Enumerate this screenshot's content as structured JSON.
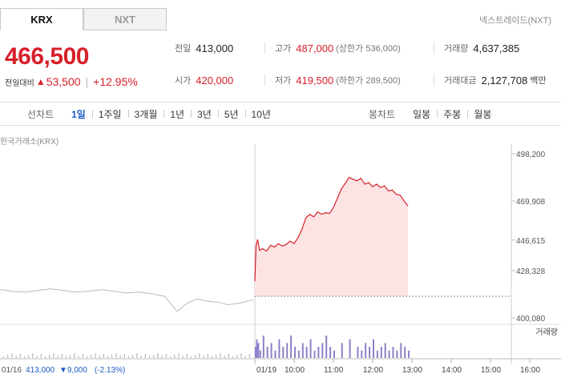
{
  "tabs": [
    {
      "label": "KRX",
      "active": true
    },
    {
      "label": "NXT",
      "active": false
    }
  ],
  "nxt_link": "넥스트레이드(NXT)",
  "price": {
    "current": "466,500",
    "change_label": "전일대비",
    "change": "53,500",
    "change_rate": "+12.95%"
  },
  "stats": {
    "prev_close": {
      "label": "전일",
      "value": "413,000"
    },
    "high": {
      "label": "고가",
      "value": "487,000",
      "sub": "(상한가 536,000)"
    },
    "volume": {
      "label": "거래량",
      "value": "4,637,385"
    },
    "open": {
      "label": "시가",
      "value": "420,000"
    },
    "low": {
      "label": "저가",
      "value": "419,500",
      "sub": "(하한가 289,500)"
    },
    "trade_value": {
      "label": "거래대금",
      "value": "2,127,708",
      "unit": "백만"
    }
  },
  "toolbar": {
    "line_chart_label": "선차트",
    "periods": [
      "1일",
      "1주일",
      "3개월",
      "1년",
      "3년",
      "5년",
      "10년"
    ],
    "active_period": "1일",
    "candle_chart_label": "봉차트",
    "candle_periods": [
      "일봉",
      "주봉",
      "월봉"
    ]
  },
  "chart_source": "한국거래소(KRX)",
  "colors": {
    "up": "#d6202a",
    "down": "#1d5cc4",
    "area_fill": "#fde3e3"
  },
  "chart_data": {
    "type": "line",
    "y_ticks": [
      "498,200",
      "469,908",
      "446,615",
      "428,328",
      "400,080"
    ],
    "y_tick_values": [
      498200,
      469908,
      446615,
      428328,
      400080
    ],
    "ylim": [
      400080,
      498200
    ],
    "x_ticks": [
      "01/19",
      "10:00",
      "11:00",
      "12:00",
      "13:00",
      "14:00",
      "15:00",
      "16:00"
    ],
    "volume_label": "거래량",
    "prev_day_info": {
      "date": "01/16",
      "close": "413,000",
      "change": "9,000",
      "rate": "(-2.13%)"
    },
    "prev_close_value": 413000,
    "prev_day_series": [
      [
        0,
        417000
      ],
      [
        0.05,
        416000
      ],
      [
        0.1,
        415500
      ],
      [
        0.15,
        416500
      ],
      [
        0.2,
        417500
      ],
      [
        0.25,
        416500
      ],
      [
        0.3,
        415500
      ],
      [
        0.35,
        416000
      ],
      [
        0.4,
        417000
      ],
      [
        0.45,
        416000
      ],
      [
        0.5,
        415000
      ],
      [
        0.55,
        415500
      ],
      [
        0.6,
        414500
      ],
      [
        0.65,
        413000
      ],
      [
        0.7,
        404000
      ],
      [
        0.74,
        409000
      ],
      [
        0.78,
        411500
      ],
      [
        0.82,
        410000
      ],
      [
        0.86,
        409500
      ],
      [
        0.9,
        408000
      ],
      [
        0.95,
        409000
      ],
      [
        1.0,
        411000
      ]
    ],
    "series": [
      {
        "x": [
          9.0,
          9.03,
          9.07,
          9.12,
          9.2,
          9.3,
          9.4,
          9.5,
          9.6,
          9.7,
          9.8,
          9.9,
          10.0,
          10.1,
          10.2,
          10.3,
          10.4,
          10.5,
          10.6,
          10.7,
          10.8,
          10.9,
          11.0,
          11.2,
          11.4,
          11.6,
          11.7,
          11.8,
          11.9,
          12.0,
          12.1,
          12.2,
          12.3,
          12.4,
          12.5,
          12.6,
          12.7,
          12.8,
          12.9
        ],
        "y": [
          422000,
          443000,
          447000,
          440500,
          441500,
          440000,
          443500,
          442500,
          444500,
          443000,
          444000,
          446000,
          444500,
          448000,
          453000,
          460000,
          462000,
          460500,
          463500,
          462000,
          463000,
          462500,
          466000,
          477000,
          484000,
          482000,
          483500,
          480000,
          481000,
          478500,
          480000,
          478000,
          479000,
          476000,
          476500,
          474000,
          473500,
          470000,
          467000
        ]
      }
    ],
    "volume_series": [
      3,
      5,
      4,
      2,
      6,
      3,
      4,
      2,
      5,
      3,
      4,
      6,
      3,
      2,
      4,
      3,
      5,
      2,
      3,
      4,
      6,
      3,
      2,
      4,
      5,
      3,
      2,
      4,
      3,
      5,
      2,
      3,
      4,
      2,
      3,
      2,
      4,
      3,
      2
    ]
  }
}
